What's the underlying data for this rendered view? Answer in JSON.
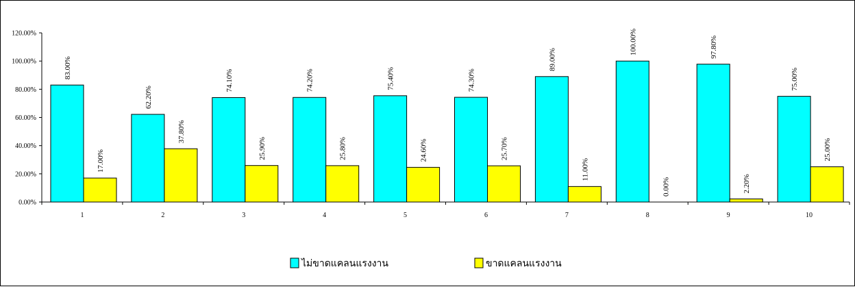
{
  "chart_data": {
    "type": "bar",
    "categories": [
      "1",
      "2",
      "3",
      "4",
      "5",
      "6",
      "7",
      "8",
      "9",
      "10"
    ],
    "series": [
      {
        "name": "ไม่ขาดแคลนแรงงาน",
        "color": "#00FFFF",
        "values": [
          83.0,
          62.2,
          74.1,
          74.2,
          75.4,
          74.3,
          89.0,
          100.0,
          97.8,
          75.0
        ],
        "labels": [
          "83.00%",
          "62.20%",
          "74.10%",
          "74.20%",
          "75.40%",
          "74.30%",
          "89.00%",
          "100.00%",
          "97.80%",
          "75.00%"
        ]
      },
      {
        "name": "ขาดแคลนแรงงาน",
        "color": "#FFFF00",
        "values": [
          17.0,
          37.8,
          25.9,
          25.8,
          24.6,
          25.7,
          11.0,
          0.0,
          2.2,
          25.0
        ],
        "labels": [
          "17.00%",
          "37.80%",
          "25.90%",
          "25.80%",
          "24.60%",
          "25.70%",
          "11.00%",
          "0.00%",
          "2.20%",
          "25.00%"
        ]
      }
    ],
    "y_ticks": [
      "0.00%",
      "20.00%",
      "40.00%",
      "60.00%",
      "80.00%",
      "100.00%",
      "120.00%"
    ],
    "ylim": [
      0,
      120
    ],
    "grid": false,
    "legend_position": "bottom"
  }
}
